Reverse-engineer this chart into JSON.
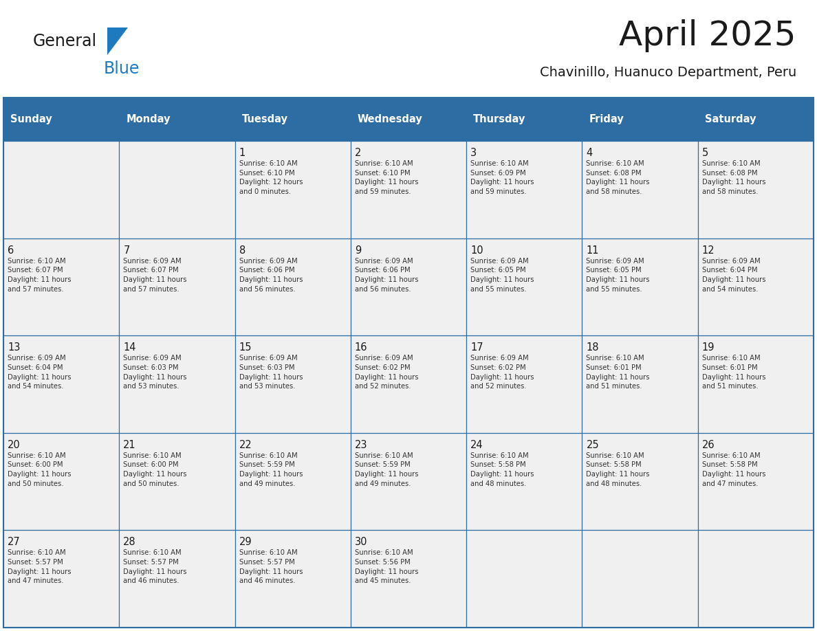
{
  "title": "April 2025",
  "subtitle": "Chavinillo, Huanuco Department, Peru",
  "header_bg_color": "#2E6DA4",
  "header_text_color": "#FFFFFF",
  "cell_bg_color": "#F0F0F0",
  "border_color": "#2E6DA4",
  "title_color": "#1a1a1a",
  "subtitle_color": "#1a1a1a",
  "day_number_color": "#1a1a1a",
  "cell_text_color": "#333333",
  "days_of_week": [
    "Sunday",
    "Monday",
    "Tuesday",
    "Wednesday",
    "Thursday",
    "Friday",
    "Saturday"
  ],
  "weeks": [
    [
      {
        "day": "",
        "info": ""
      },
      {
        "day": "",
        "info": ""
      },
      {
        "day": "1",
        "info": "Sunrise: 6:10 AM\nSunset: 6:10 PM\nDaylight: 12 hours\nand 0 minutes."
      },
      {
        "day": "2",
        "info": "Sunrise: 6:10 AM\nSunset: 6:10 PM\nDaylight: 11 hours\nand 59 minutes."
      },
      {
        "day": "3",
        "info": "Sunrise: 6:10 AM\nSunset: 6:09 PM\nDaylight: 11 hours\nand 59 minutes."
      },
      {
        "day": "4",
        "info": "Sunrise: 6:10 AM\nSunset: 6:08 PM\nDaylight: 11 hours\nand 58 minutes."
      },
      {
        "day": "5",
        "info": "Sunrise: 6:10 AM\nSunset: 6:08 PM\nDaylight: 11 hours\nand 58 minutes."
      }
    ],
    [
      {
        "day": "6",
        "info": "Sunrise: 6:10 AM\nSunset: 6:07 PM\nDaylight: 11 hours\nand 57 minutes."
      },
      {
        "day": "7",
        "info": "Sunrise: 6:09 AM\nSunset: 6:07 PM\nDaylight: 11 hours\nand 57 minutes."
      },
      {
        "day": "8",
        "info": "Sunrise: 6:09 AM\nSunset: 6:06 PM\nDaylight: 11 hours\nand 56 minutes."
      },
      {
        "day": "9",
        "info": "Sunrise: 6:09 AM\nSunset: 6:06 PM\nDaylight: 11 hours\nand 56 minutes."
      },
      {
        "day": "10",
        "info": "Sunrise: 6:09 AM\nSunset: 6:05 PM\nDaylight: 11 hours\nand 55 minutes."
      },
      {
        "day": "11",
        "info": "Sunrise: 6:09 AM\nSunset: 6:05 PM\nDaylight: 11 hours\nand 55 minutes."
      },
      {
        "day": "12",
        "info": "Sunrise: 6:09 AM\nSunset: 6:04 PM\nDaylight: 11 hours\nand 54 minutes."
      }
    ],
    [
      {
        "day": "13",
        "info": "Sunrise: 6:09 AM\nSunset: 6:04 PM\nDaylight: 11 hours\nand 54 minutes."
      },
      {
        "day": "14",
        "info": "Sunrise: 6:09 AM\nSunset: 6:03 PM\nDaylight: 11 hours\nand 53 minutes."
      },
      {
        "day": "15",
        "info": "Sunrise: 6:09 AM\nSunset: 6:03 PM\nDaylight: 11 hours\nand 53 minutes."
      },
      {
        "day": "16",
        "info": "Sunrise: 6:09 AM\nSunset: 6:02 PM\nDaylight: 11 hours\nand 52 minutes."
      },
      {
        "day": "17",
        "info": "Sunrise: 6:09 AM\nSunset: 6:02 PM\nDaylight: 11 hours\nand 52 minutes."
      },
      {
        "day": "18",
        "info": "Sunrise: 6:10 AM\nSunset: 6:01 PM\nDaylight: 11 hours\nand 51 minutes."
      },
      {
        "day": "19",
        "info": "Sunrise: 6:10 AM\nSunset: 6:01 PM\nDaylight: 11 hours\nand 51 minutes."
      }
    ],
    [
      {
        "day": "20",
        "info": "Sunrise: 6:10 AM\nSunset: 6:00 PM\nDaylight: 11 hours\nand 50 minutes."
      },
      {
        "day": "21",
        "info": "Sunrise: 6:10 AM\nSunset: 6:00 PM\nDaylight: 11 hours\nand 50 minutes."
      },
      {
        "day": "22",
        "info": "Sunrise: 6:10 AM\nSunset: 5:59 PM\nDaylight: 11 hours\nand 49 minutes."
      },
      {
        "day": "23",
        "info": "Sunrise: 6:10 AM\nSunset: 5:59 PM\nDaylight: 11 hours\nand 49 minutes."
      },
      {
        "day": "24",
        "info": "Sunrise: 6:10 AM\nSunset: 5:58 PM\nDaylight: 11 hours\nand 48 minutes."
      },
      {
        "day": "25",
        "info": "Sunrise: 6:10 AM\nSunset: 5:58 PM\nDaylight: 11 hours\nand 48 minutes."
      },
      {
        "day": "26",
        "info": "Sunrise: 6:10 AM\nSunset: 5:58 PM\nDaylight: 11 hours\nand 47 minutes."
      }
    ],
    [
      {
        "day": "27",
        "info": "Sunrise: 6:10 AM\nSunset: 5:57 PM\nDaylight: 11 hours\nand 47 minutes."
      },
      {
        "day": "28",
        "info": "Sunrise: 6:10 AM\nSunset: 5:57 PM\nDaylight: 11 hours\nand 46 minutes."
      },
      {
        "day": "29",
        "info": "Sunrise: 6:10 AM\nSunset: 5:57 PM\nDaylight: 11 hours\nand 46 minutes."
      },
      {
        "day": "30",
        "info": "Sunrise: 6:10 AM\nSunset: 5:56 PM\nDaylight: 11 hours\nand 45 minutes."
      },
      {
        "day": "",
        "info": ""
      },
      {
        "day": "",
        "info": ""
      },
      {
        "day": "",
        "info": ""
      }
    ]
  ],
  "logo_text_general": "General",
  "logo_text_blue": "Blue",
  "logo_color_general": "#1a1a1a",
  "logo_color_blue": "#1e7abf",
  "logo_triangle_color": "#1e7abf",
  "fig_width": 11.88,
  "fig_height": 9.18,
  "dpi": 100
}
